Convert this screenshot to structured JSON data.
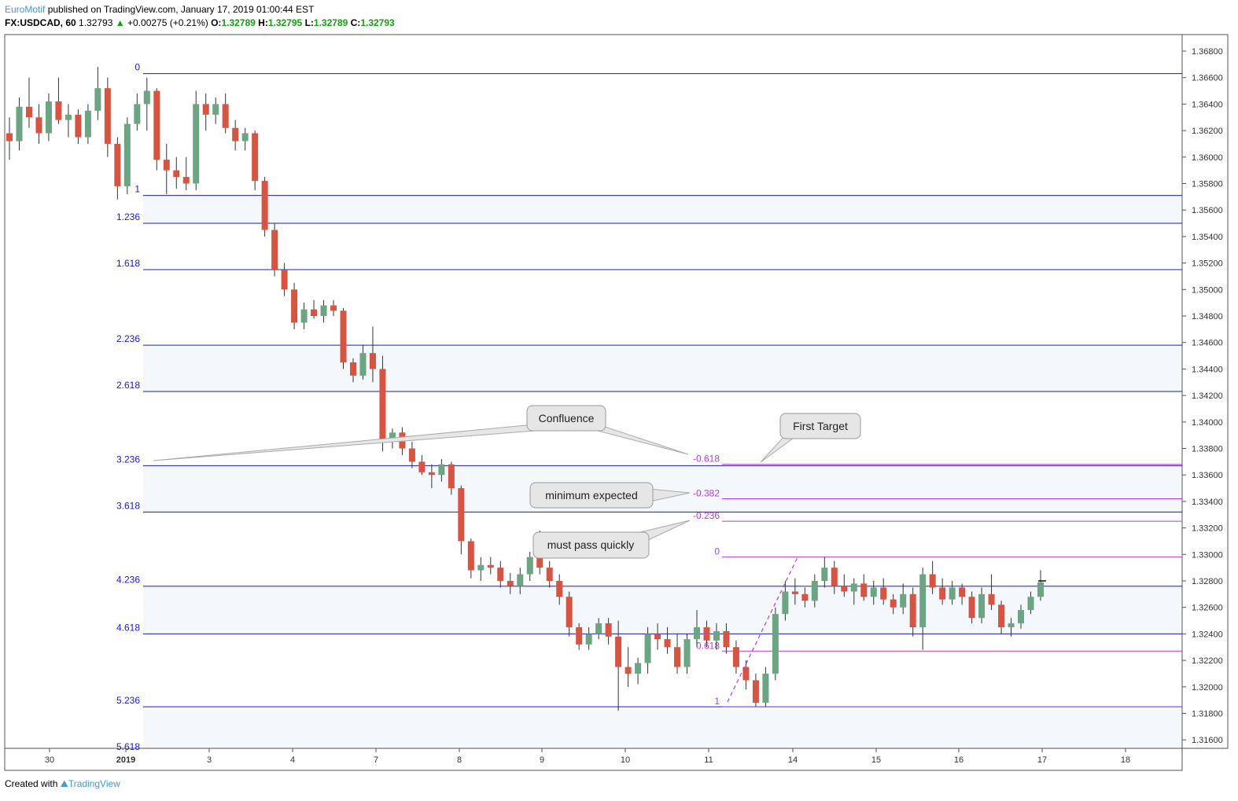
{
  "header": {
    "author": "EuroMotif",
    "published_text": "published on TradingView.com, January 17, 2019 01:00:44 EST",
    "symbol": "FX:USDCAD, 60",
    "last": "1.32793",
    "change": "+0.00275 (+0.21%)",
    "o_label": "O:",
    "o": "1.32789",
    "h_label": "H:",
    "h": "1.32795",
    "l_label": "L:",
    "l": "1.32789",
    "c_label": "C:",
    "c": "1.32793"
  },
  "footer": {
    "created_with": "Created with",
    "brand": "TradingView"
  },
  "colors": {
    "up": "#6ba583",
    "down": "#d75442",
    "fib_main": "#1a1ad6",
    "fib_ext": "#b23fd9",
    "band": "#f4f7fb",
    "grid_border": "#555555"
  },
  "chart_data": {
    "type": "candlestick",
    "ylim": [
      1.3155,
      1.3695
    ],
    "y_ticks": [
      "1.36800",
      "1.36600",
      "1.36400",
      "1.36200",
      "1.36000",
      "1.35800",
      "1.35600",
      "1.35400",
      "1.35200",
      "1.35000",
      "1.34800",
      "1.34600",
      "1.34400",
      "1.34200",
      "1.34000",
      "1.33800",
      "1.33600",
      "1.33400",
      "1.33200",
      "1.33000",
      "1.32800",
      "1.32600",
      "1.32400",
      "1.32200",
      "1.32000",
      "1.31800",
      "1.31600"
    ],
    "x_ticks": [
      "30",
      "2019",
      "3",
      "4",
      "7",
      "8",
      "9",
      "10",
      "11",
      "14",
      "15",
      "16",
      "17",
      "18"
    ],
    "fib_main": {
      "levels": [
        {
          "label": "0",
          "price": 1.3663
        },
        {
          "label": "1",
          "price": 1.3571
        },
        {
          "label": "1.236",
          "price": 1.355
        },
        {
          "label": "1.618",
          "price": 1.3515
        },
        {
          "label": "2.236",
          "price": 1.3458
        },
        {
          "label": "2.618",
          "price": 1.3423
        },
        {
          "label": "3.236",
          "price": 1.3367
        },
        {
          "label": "3.618",
          "price": 1.3332
        },
        {
          "label": "4.236",
          "price": 1.3276
        },
        {
          "label": "4.618",
          "price": 1.324
        },
        {
          "label": "5.236",
          "price": 1.3185
        },
        {
          "label": "5.618",
          "price": 1.315
        }
      ]
    },
    "fib_ext": {
      "levels": [
        {
          "label": "-0.618",
          "price": 1.3368
        },
        {
          "label": "-0.382",
          "price": 1.3342
        },
        {
          "label": "-0.236",
          "price": 1.3325
        },
        {
          "label": "0",
          "price": 1.3298
        },
        {
          "label": "0.618",
          "price": 1.3227
        },
        {
          "label": "1",
          "price": 1.3185
        }
      ]
    },
    "annotations": [
      {
        "text": "Confluence"
      },
      {
        "text": "First Target"
      },
      {
        "text": "minimum expected"
      },
      {
        "text": "must pass quickly"
      }
    ],
    "series": [
      {
        "x": "Dec 28",
        "open": 1.3618,
        "high": 1.363,
        "low": 1.3598,
        "close": 1.3612
      },
      {
        "x": "Dec 28",
        "open": 1.3612,
        "high": 1.3645,
        "low": 1.3605,
        "close": 1.3638
      },
      {
        "x": "Dec 28",
        "open": 1.3638,
        "high": 1.366,
        "low": 1.3622,
        "close": 1.363
      },
      {
        "x": "Dec 28",
        "open": 1.363,
        "high": 1.364,
        "low": 1.361,
        "close": 1.3618
      },
      {
        "x": "Dec 31",
        "open": 1.3618,
        "high": 1.3648,
        "low": 1.3612,
        "close": 1.3642
      },
      {
        "x": "Dec 31",
        "open": 1.3642,
        "high": 1.366,
        "low": 1.3625,
        "close": 1.3628
      },
      {
        "x": "Dec 31",
        "open": 1.3628,
        "high": 1.364,
        "low": 1.3615,
        "close": 1.3632
      },
      {
        "x": "Dec 31",
        "open": 1.3632,
        "high": 1.3636,
        "low": 1.361,
        "close": 1.3615
      },
      {
        "x": "Dec 31",
        "open": 1.3615,
        "high": 1.364,
        "low": 1.361,
        "close": 1.3635
      },
      {
        "x": "Dec 31",
        "open": 1.3635,
        "high": 1.3668,
        "low": 1.3628,
        "close": 1.3652
      },
      {
        "x": "Dec 31",
        "open": 1.3652,
        "high": 1.366,
        "low": 1.36,
        "close": 1.361
      },
      {
        "x": "Jan 2",
        "open": 1.361,
        "high": 1.3615,
        "low": 1.3568,
        "close": 1.3578
      },
      {
        "x": "Jan 2",
        "open": 1.3578,
        "high": 1.363,
        "low": 1.3572,
        "close": 1.3625
      },
      {
        "x": "Jan 2",
        "open": 1.3625,
        "high": 1.3648,
        "low": 1.362,
        "close": 1.364
      },
      {
        "x": "Jan 2",
        "open": 1.364,
        "high": 1.366,
        "low": 1.362,
        "close": 1.365
      },
      {
        "x": "Jan 2",
        "open": 1.365,
        "high": 1.3652,
        "low": 1.359,
        "close": 1.3598
      },
      {
        "x": "Jan 2",
        "open": 1.3598,
        "high": 1.361,
        "low": 1.3572,
        "close": 1.359
      },
      {
        "x": "Jan 2",
        "open": 1.359,
        "high": 1.36,
        "low": 1.3576,
        "close": 1.3585
      },
      {
        "x": "Jan 2",
        "open": 1.3585,
        "high": 1.36,
        "low": 1.3575,
        "close": 1.358
      },
      {
        "x": "Jan 3",
        "open": 1.358,
        "high": 1.365,
        "low": 1.3575,
        "close": 1.364
      },
      {
        "x": "Jan 3",
        "open": 1.364,
        "high": 1.3648,
        "low": 1.362,
        "close": 1.3632
      },
      {
        "x": "Jan 3",
        "open": 1.3632,
        "high": 1.3645,
        "low": 1.3625,
        "close": 1.364
      },
      {
        "x": "Jan 3",
        "open": 1.364,
        "high": 1.3648,
        "low": 1.3618,
        "close": 1.3622
      },
      {
        "x": "Jan 3",
        "open": 1.3622,
        "high": 1.3628,
        "low": 1.3605,
        "close": 1.3612
      },
      {
        "x": "Jan 3",
        "open": 1.3612,
        "high": 1.3622,
        "low": 1.3605,
        "close": 1.3618
      },
      {
        "x": "Jan 3",
        "open": 1.3618,
        "high": 1.362,
        "low": 1.3575,
        "close": 1.3582
      },
      {
        "x": "Jan 3",
        "open": 1.3582,
        "high": 1.3585,
        "low": 1.354,
        "close": 1.3545
      },
      {
        "x": "Jan 3",
        "open": 1.3545,
        "high": 1.355,
        "low": 1.351,
        "close": 1.3515
      },
      {
        "x": "Jan 3",
        "open": 1.3515,
        "high": 1.352,
        "low": 1.3495,
        "close": 1.35
      },
      {
        "x": "Jan 4",
        "open": 1.35,
        "high": 1.3505,
        "low": 1.347,
        "close": 1.3475
      },
      {
        "x": "Jan 4",
        "open": 1.3475,
        "high": 1.349,
        "low": 1.347,
        "close": 1.3485
      },
      {
        "x": "Jan 4",
        "open": 1.3485,
        "high": 1.3492,
        "low": 1.3478,
        "close": 1.348
      },
      {
        "x": "Jan 4",
        "open": 1.348,
        "high": 1.3492,
        "low": 1.3475,
        "close": 1.3488
      },
      {
        "x": "Jan 4",
        "open": 1.3488,
        "high": 1.3492,
        "low": 1.348,
        "close": 1.3484
      },
      {
        "x": "Jan 4",
        "open": 1.3484,
        "high": 1.3486,
        "low": 1.344,
        "close": 1.3445
      },
      {
        "x": "Jan 4",
        "open": 1.3445,
        "high": 1.3448,
        "low": 1.343,
        "close": 1.3435
      },
      {
        "x": "Jan 4",
        "open": 1.3435,
        "high": 1.3458,
        "low": 1.3432,
        "close": 1.3452
      },
      {
        "x": "Jan 4",
        "open": 1.3452,
        "high": 1.3472,
        "low": 1.343,
        "close": 1.344
      },
      {
        "x": "Jan 4",
        "open": 1.344,
        "high": 1.345,
        "low": 1.3378,
        "close": 1.3385
      },
      {
        "x": "Jan 7",
        "open": 1.3385,
        "high": 1.3395,
        "low": 1.338,
        "close": 1.3392
      },
      {
        "x": "Jan 7",
        "open": 1.3392,
        "high": 1.3396,
        "low": 1.3375,
        "close": 1.338
      },
      {
        "x": "Jan 7",
        "open": 1.338,
        "high": 1.3385,
        "low": 1.3365,
        "close": 1.337
      },
      {
        "x": "Jan 7",
        "open": 1.337,
        "high": 1.3375,
        "low": 1.336,
        "close": 1.3362
      },
      {
        "x": "Jan 7",
        "open": 1.3362,
        "high": 1.3368,
        "low": 1.335,
        "close": 1.336
      },
      {
        "x": "Jan 7",
        "open": 1.336,
        "high": 1.3372,
        "low": 1.3355,
        "close": 1.3368
      },
      {
        "x": "Jan 7",
        "open": 1.3368,
        "high": 1.337,
        "low": 1.3345,
        "close": 1.335
      },
      {
        "x": "Jan 7",
        "open": 1.335,
        "high": 1.3352,
        "low": 1.33,
        "close": 1.331
      },
      {
        "x": "Jan 7",
        "open": 1.331,
        "high": 1.3312,
        "low": 1.3282,
        "close": 1.3288
      },
      {
        "x": "Jan 8",
        "open": 1.3288,
        "high": 1.3298,
        "low": 1.328,
        "close": 1.3292
      },
      {
        "x": "Jan 8",
        "open": 1.3292,
        "high": 1.3298,
        "low": 1.3285,
        "close": 1.329
      },
      {
        "x": "Jan 8",
        "open": 1.329,
        "high": 1.3295,
        "low": 1.3275,
        "close": 1.328
      },
      {
        "x": "Jan 8",
        "open": 1.328,
        "high": 1.3286,
        "low": 1.327,
        "close": 1.3276
      },
      {
        "x": "Jan 8",
        "open": 1.3276,
        "high": 1.329,
        "low": 1.327,
        "close": 1.3285
      },
      {
        "x": "Jan 8",
        "open": 1.3285,
        "high": 1.3302,
        "low": 1.328,
        "close": 1.3298
      },
      {
        "x": "Jan 8",
        "open": 1.3298,
        "high": 1.3318,
        "low": 1.3285,
        "close": 1.329
      },
      {
        "x": "Jan 8",
        "open": 1.329,
        "high": 1.3295,
        "low": 1.3275,
        "close": 1.328
      },
      {
        "x": "Jan 8",
        "open": 1.328,
        "high": 1.3285,
        "low": 1.3262,
        "close": 1.3268
      },
      {
        "x": "Jan 9",
        "open": 1.3268,
        "high": 1.3272,
        "low": 1.3238,
        "close": 1.3245
      },
      {
        "x": "Jan 9",
        "open": 1.3245,
        "high": 1.3248,
        "low": 1.3228,
        "close": 1.3232
      },
      {
        "x": "Jan 9",
        "open": 1.3232,
        "high": 1.3245,
        "low": 1.3228,
        "close": 1.324
      },
      {
        "x": "Jan 9",
        "open": 1.324,
        "high": 1.3252,
        "low": 1.3236,
        "close": 1.3248
      },
      {
        "x": "Jan 9",
        "open": 1.3248,
        "high": 1.3252,
        "low": 1.3232,
        "close": 1.3238
      },
      {
        "x": "Jan 9",
        "open": 1.3238,
        "high": 1.325,
        "low": 1.3182,
        "close": 1.3215
      },
      {
        "x": "Jan 9",
        "open": 1.3215,
        "high": 1.323,
        "low": 1.32,
        "close": 1.321
      },
      {
        "x": "Jan 9",
        "open": 1.321,
        "high": 1.3222,
        "low": 1.3202,
        "close": 1.3218
      },
      {
        "x": "Jan 10",
        "open": 1.3218,
        "high": 1.3245,
        "low": 1.321,
        "close": 1.324
      },
      {
        "x": "Jan 10",
        "open": 1.324,
        "high": 1.3248,
        "low": 1.3228,
        "close": 1.3236
      },
      {
        "x": "Jan 10",
        "open": 1.3236,
        "high": 1.3245,
        "low": 1.3225,
        "close": 1.323
      },
      {
        "x": "Jan 10",
        "open": 1.323,
        "high": 1.324,
        "low": 1.321,
        "close": 1.3215
      },
      {
        "x": "Jan 10",
        "open": 1.3215,
        "high": 1.324,
        "low": 1.321,
        "close": 1.3236
      },
      {
        "x": "Jan 10",
        "open": 1.3236,
        "high": 1.3258,
        "low": 1.323,
        "close": 1.3245
      },
      {
        "x": "Jan 10",
        "open": 1.3245,
        "high": 1.325,
        "low": 1.323,
        "close": 1.3235
      },
      {
        "x": "Jan 10",
        "open": 1.3235,
        "high": 1.3248,
        "low": 1.3228,
        "close": 1.3242
      },
      {
        "x": "Jan 11",
        "open": 1.3242,
        "high": 1.3248,
        "low": 1.3225,
        "close": 1.323
      },
      {
        "x": "Jan 11",
        "open": 1.323,
        "high": 1.3235,
        "low": 1.321,
        "close": 1.3215
      },
      {
        "x": "Jan 11",
        "open": 1.3215,
        "high": 1.322,
        "low": 1.3198,
        "close": 1.3205
      },
      {
        "x": "Jan 11",
        "open": 1.3205,
        "high": 1.321,
        "low": 1.3185,
        "close": 1.3188
      },
      {
        "x": "Jan 11",
        "open": 1.3188,
        "high": 1.3215,
        "low": 1.3185,
        "close": 1.321
      },
      {
        "x": "Jan 11",
        "open": 1.321,
        "high": 1.326,
        "low": 1.3205,
        "close": 1.3255
      },
      {
        "x": "Jan 11",
        "open": 1.3255,
        "high": 1.328,
        "low": 1.325,
        "close": 1.3272
      },
      {
        "x": "Jan 14",
        "open": 1.3272,
        "high": 1.3282,
        "low": 1.3262,
        "close": 1.327
      },
      {
        "x": "Jan 14",
        "open": 1.327,
        "high": 1.3275,
        "low": 1.326,
        "close": 1.3265
      },
      {
        "x": "Jan 14",
        "open": 1.3265,
        "high": 1.3285,
        "low": 1.326,
        "close": 1.328
      },
      {
        "x": "Jan 14",
        "open": 1.328,
        "high": 1.3298,
        "low": 1.3275,
        "close": 1.329
      },
      {
        "x": "Jan 14",
        "open": 1.329,
        "high": 1.3295,
        "low": 1.327,
        "close": 1.3276
      },
      {
        "x": "Jan 14",
        "open": 1.3276,
        "high": 1.3285,
        "low": 1.3268,
        "close": 1.3272
      },
      {
        "x": "Jan 14",
        "open": 1.3272,
        "high": 1.3282,
        "low": 1.3262,
        "close": 1.3278
      },
      {
        "x": "Jan 14",
        "open": 1.3278,
        "high": 1.3285,
        "low": 1.3265,
        "close": 1.3268
      },
      {
        "x": "Jan 15",
        "open": 1.3268,
        "high": 1.328,
        "low": 1.3262,
        "close": 1.3275
      },
      {
        "x": "Jan 15",
        "open": 1.3275,
        "high": 1.3282,
        "low": 1.3262,
        "close": 1.3266
      },
      {
        "x": "Jan 15",
        "open": 1.3266,
        "high": 1.327,
        "low": 1.3255,
        "close": 1.326
      },
      {
        "x": "Jan 15",
        "open": 1.326,
        "high": 1.3278,
        "low": 1.3255,
        "close": 1.327
      },
      {
        "x": "Jan 15",
        "open": 1.327,
        "high": 1.3275,
        "low": 1.3238,
        "close": 1.3245
      },
      {
        "x": "Jan 15",
        "open": 1.3245,
        "high": 1.329,
        "low": 1.3228,
        "close": 1.3285
      },
      {
        "x": "Jan 15",
        "open": 1.3285,
        "high": 1.3295,
        "low": 1.327,
        "close": 1.3275
      },
      {
        "x": "Jan 15",
        "open": 1.3275,
        "high": 1.3282,
        "low": 1.3262,
        "close": 1.3266
      },
      {
        "x": "Jan 16",
        "open": 1.3266,
        "high": 1.328,
        "low": 1.3262,
        "close": 1.3275
      },
      {
        "x": "Jan 16",
        "open": 1.3275,
        "high": 1.3278,
        "low": 1.3262,
        "close": 1.3268
      },
      {
        "x": "Jan 16",
        "open": 1.3268,
        "high": 1.3272,
        "low": 1.3248,
        "close": 1.3252
      },
      {
        "x": "Jan 16",
        "open": 1.3252,
        "high": 1.3275,
        "low": 1.3248,
        "close": 1.327
      },
      {
        "x": "Jan 16",
        "open": 1.327,
        "high": 1.3285,
        "low": 1.3258,
        "close": 1.3262
      },
      {
        "x": "Jan 16",
        "open": 1.3262,
        "high": 1.3265,
        "low": 1.324,
        "close": 1.3245
      },
      {
        "x": "Jan 16",
        "open": 1.3245,
        "high": 1.3252,
        "low": 1.3238,
        "close": 1.3248
      },
      {
        "x": "Jan 16",
        "open": 1.3248,
        "high": 1.3262,
        "low": 1.3244,
        "close": 1.3258
      },
      {
        "x": "Jan 17",
        "open": 1.3258,
        "high": 1.3272,
        "low": 1.3255,
        "close": 1.3268
      },
      {
        "x": "Jan 17",
        "open": 1.3268,
        "high": 1.3288,
        "low": 1.3265,
        "close": 1.3279
      }
    ]
  }
}
